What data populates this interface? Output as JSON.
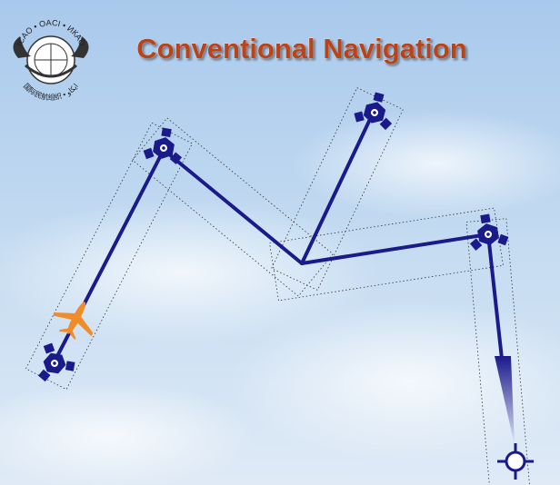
{
  "title": "Conventional Navigation",
  "logo": {
    "top_text": "ICAO • OACI • ИКАО",
    "bottom_text": "国际民航组织 • ايكاو"
  }
}
